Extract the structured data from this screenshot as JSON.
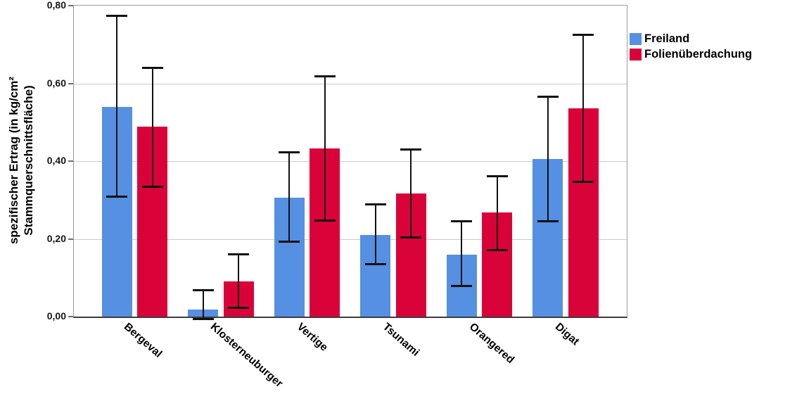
{
  "chart_data": {
    "type": "bar",
    "title": "",
    "ylabel_line1": "spezifischer Ertrag (in kg/cm²",
    "ylabel_line2": "Stammquerschnittsfläche)",
    "xlabel": "",
    "categories": [
      "Bergeval",
      "Klosterneuburger",
      "Vertige",
      "Tsunami",
      "Orangered",
      "Digat"
    ],
    "series": [
      {
        "name": "Freiland",
        "color": "#5590E2",
        "values": [
          0.54,
          0.018,
          0.306,
          0.21,
          0.16,
          0.405
        ],
        "error_low": [
          0.31,
          -0.005,
          0.193,
          0.135,
          0.079,
          0.246
        ],
        "error_high": [
          0.775,
          0.068,
          0.423,
          0.29,
          0.246,
          0.566
        ]
      },
      {
        "name": "Folienüberdachung",
        "color": "#D90339",
        "values": [
          0.488,
          0.091,
          0.433,
          0.316,
          0.268,
          0.535
        ],
        "error_low": [
          0.335,
          0.024,
          0.248,
          0.204,
          0.172,
          0.348
        ],
        "error_high": [
          0.641,
          0.161,
          0.619,
          0.43,
          0.362,
          0.726
        ]
      }
    ],
    "ylim": [
      0,
      0.8
    ],
    "ytick_step": 0.2,
    "ytick_labels": [
      "0,00",
      "0,20",
      "0,40",
      "0,60",
      "0,80"
    ],
    "grid": true,
    "error_bars": true,
    "legend_position": "top-right",
    "decimal_separator": ","
  },
  "colors": {
    "gridline": "#cbcbcb",
    "frame": "#9c9c9c",
    "axis_baseline": "#3d3d3d",
    "error_bar": "#111111",
    "background": "#ffffff"
  }
}
